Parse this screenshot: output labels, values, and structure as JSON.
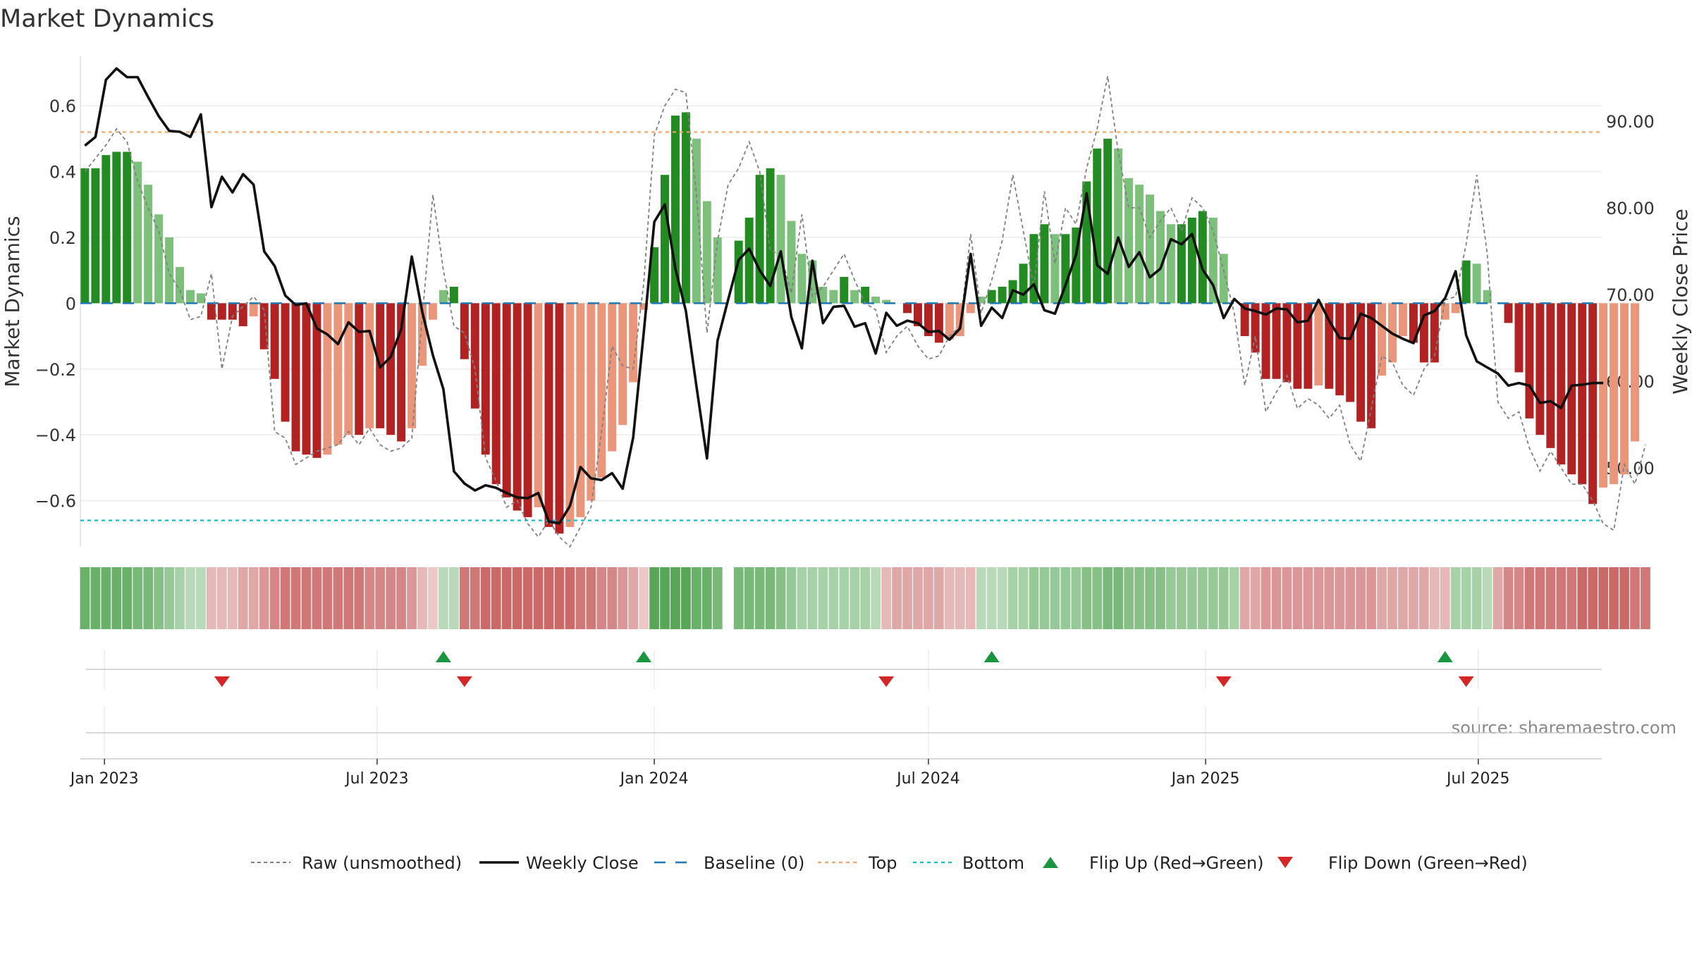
{
  "title": "Market Dynamics",
  "source_text": "source: sharemaestro.com",
  "colors": {
    "strong_green": "#228b22",
    "light_green": "#7cc07c",
    "strong_red": "#b22222",
    "light_red": "#e9967a",
    "close_line": "#111111",
    "raw_line": "#808080",
    "baseline": "#1f77b4",
    "top": "#f4a460",
    "bottom": "#17becf",
    "flip_up": "#1a9641",
    "flip_down": "#d62728"
  },
  "legend": [
    {
      "label": "Raw (unsmoothed)",
      "icon": "dashed-grey-line"
    },
    {
      "label": "Weekly Close",
      "icon": "solid-black-line"
    },
    {
      "label": "Baseline (0)",
      "icon": "dashed-blue-line"
    },
    {
      "label": "Top",
      "icon": "dotted-orange-line"
    },
    {
      "label": "Bottom",
      "icon": "dotted-cyan-line"
    },
    {
      "label": "Flip Up (Red→Green)",
      "icon": "green-up-triangle"
    },
    {
      "label": "Flip Down (Green→Red)",
      "icon": "red-down-triangle"
    }
  ],
  "chart_data": {
    "type": "bar",
    "title": "Market Dynamics",
    "ylabel": "Market Dynamics",
    "y2label": "Weekly Close Price",
    "ylim": [
      -0.74,
      0.75
    ],
    "y2lim": [
      40.9,
      97.5
    ],
    "y_ticks": [
      0.6,
      0.4,
      0.2,
      0,
      -0.2,
      -0.4,
      -0.6
    ],
    "y_tick_labels": [
      "0.6",
      "0.4",
      "0.2",
      "0",
      "−0.2",
      "−0.4",
      "−0.6"
    ],
    "y2_ticks": [
      90,
      80,
      70,
      60,
      50
    ],
    "y2_tick_labels": [
      "90.00",
      "80.00",
      "70.00",
      "60.00",
      "50.00"
    ],
    "x_start": "2022-12-16",
    "x_end": "2025-09-21",
    "x_ticks": [
      "2023-01-01",
      "2023-07-01",
      "2024-01-01",
      "2024-07-01",
      "2025-01-01",
      "2025-07-01"
    ],
    "x_tick_labels": [
      "Jan 2023",
      "Jul 2023",
      "Jan 2024",
      "Jul 2024",
      "Jan 2025",
      "Jul 2025"
    ],
    "week_start": "2022-12-19",
    "top_threshold": 0.52,
    "bottom_threshold": -0.66,
    "baseline": 0,
    "grid": true,
    "legend_position": "bottom",
    "series": [
      {
        "name": "Market Dynamics",
        "values": [
          0.41,
          0.41,
          0.45,
          0.46,
          0.46,
          0.43,
          0.36,
          0.27,
          0.2,
          0.11,
          0.04,
          0.03,
          -0.05,
          -0.05,
          -0.05,
          -0.07,
          -0.04,
          -0.14,
          -0.23,
          -0.36,
          -0.45,
          -0.46,
          -0.47,
          -0.46,
          -0.43,
          -0.4,
          -0.4,
          -0.38,
          -0.38,
          -0.4,
          -0.42,
          -0.38,
          -0.19,
          -0.05,
          0.04,
          0.05,
          -0.17,
          -0.32,
          -0.46,
          -0.55,
          -0.59,
          -0.63,
          -0.65,
          -0.62,
          -0.68,
          -0.7,
          -0.68,
          -0.65,
          -0.6,
          -0.53,
          -0.45,
          -0.37,
          -0.24,
          -0.02,
          0.17,
          0.39,
          0.57,
          0.58,
          0.5,
          0.31,
          0.2,
          0.0,
          0.19,
          0.26,
          0.39,
          0.41,
          0.39,
          0.25,
          0.15,
          0.13,
          0.05,
          0.04,
          0.08,
          0.04,
          0.05,
          0.02,
          0.01,
          0.0,
          -0.03,
          -0.07,
          -0.1,
          -0.12,
          -0.11,
          -0.1,
          -0.03,
          0.02,
          0.04,
          0.05,
          0.07,
          0.12,
          0.21,
          0.24,
          0.21,
          0.21,
          0.23,
          0.37,
          0.47,
          0.5,
          0.47,
          0.38,
          0.36,
          0.33,
          0.28,
          0.24,
          0.24,
          0.26,
          0.28,
          0.26,
          0.15,
          0.0,
          -0.1,
          -0.15,
          -0.23,
          -0.23,
          -0.24,
          -0.26,
          -0.26,
          -0.25,
          -0.26,
          -0.28,
          -0.3,
          -0.36,
          -0.38,
          -0.22,
          -0.18,
          -0.1,
          -0.12,
          -0.18,
          -0.18,
          -0.05,
          -0.03,
          0.13,
          0.12,
          0.04,
          0.0,
          -0.06,
          -0.21,
          -0.35,
          -0.4,
          -0.44,
          -0.49,
          -0.52,
          -0.55,
          -0.61,
          -0.56,
          -0.55,
          -0.52,
          -0.42
        ]
      },
      {
        "name": "Raw (unsmoothed)",
        "values": [
          0.4,
          0.44,
          0.48,
          0.53,
          0.49,
          0.37,
          0.29,
          0.22,
          0.09,
          0.04,
          -0.05,
          -0.04,
          0.09,
          -0.2,
          -0.04,
          -0.01,
          0.02,
          -0.02,
          -0.39,
          -0.41,
          -0.49,
          -0.47,
          -0.45,
          -0.44,
          -0.43,
          -0.39,
          -0.43,
          -0.38,
          -0.43,
          -0.45,
          -0.44,
          -0.41,
          -0.04,
          0.33,
          0.1,
          -0.07,
          -0.09,
          -0.2,
          -0.47,
          -0.54,
          -0.62,
          -0.6,
          -0.67,
          -0.71,
          -0.66,
          -0.71,
          -0.74,
          -0.68,
          -0.62,
          -0.39,
          -0.13,
          -0.19,
          -0.2,
          0.06,
          0.51,
          0.6,
          0.65,
          0.64,
          0.33,
          -0.09,
          0.19,
          0.36,
          0.41,
          0.49,
          0.4,
          0.16,
          0.15,
          0.03,
          0.27,
          0.02,
          0.05,
          0.1,
          0.15,
          0.07,
          0.0,
          -0.02,
          -0.15,
          -0.1,
          -0.07,
          -0.13,
          -0.17,
          -0.16,
          -0.1,
          -0.07,
          0.21,
          -0.03,
          0.07,
          0.19,
          0.39,
          0.22,
          0.05,
          0.34,
          0.12,
          0.29,
          0.24,
          0.41,
          0.53,
          0.69,
          0.46,
          0.29,
          0.29,
          0.2,
          0.25,
          0.29,
          0.22,
          0.32,
          0.29,
          0.22,
          0.1,
          -0.03,
          -0.25,
          -0.1,
          -0.33,
          -0.27,
          -0.22,
          -0.32,
          -0.29,
          -0.31,
          -0.35,
          -0.31,
          -0.43,
          -0.48,
          -0.32,
          -0.16,
          -0.18,
          -0.25,
          -0.28,
          -0.2,
          -0.16,
          0.01,
          0.02,
          0.18,
          0.39,
          0.15,
          -0.3,
          -0.35,
          -0.33,
          -0.44,
          -0.51,
          -0.45,
          -0.5,
          -0.55,
          -0.55,
          -0.6,
          -0.67,
          -0.69,
          -0.49,
          -0.55,
          -0.43
        ]
      },
      {
        "name": "Weekly Close",
        "values": [
          87.2,
          88.2,
          94.8,
          96.1,
          95.1,
          95.1,
          92.8,
          90.6,
          88.9,
          88.8,
          88.2,
          90.8,
          80.1,
          83.6,
          81.8,
          83.9,
          82.7,
          75.0,
          73.3,
          69.9,
          68.8,
          69.0,
          66.1,
          65.4,
          64.3,
          66.8,
          65.7,
          65.8,
          61.6,
          62.8,
          66.0,
          74.4,
          68.0,
          63.0,
          59.1,
          49.6,
          48.2,
          47.4,
          48.0,
          47.7,
          47.1,
          46.6,
          46.5,
          47.1,
          43.8,
          43.6,
          45.6,
          50.1,
          48.8,
          48.6,
          49.4,
          47.6,
          53.5,
          65.6,
          78.4,
          80.4,
          73.0,
          68.1,
          59.4,
          51.1,
          64.7,
          69.4,
          74.0,
          75.3,
          72.8,
          71.0,
          75.0,
          67.4,
          63.8,
          73.9,
          66.7,
          68.6,
          68.7,
          66.3,
          66.7,
          63.2,
          67.9,
          66.4,
          67.0,
          66.7,
          65.7,
          65.8,
          64.8,
          66.1,
          74.7,
          66.4,
          68.5,
          67.3,
          70.5,
          70.0,
          71.2,
          68.2,
          67.8,
          71.1,
          74.6,
          81.7,
          73.4,
          72.4,
          76.6,
          73.2,
          74.9,
          72.0,
          73.0,
          76.4,
          75.8,
          77.0,
          72.9,
          71.1,
          67.3,
          69.5,
          68.4,
          68.1,
          67.7,
          68.4,
          68.3,
          66.8,
          67.0,
          69.4,
          67.0,
          65.0,
          64.9,
          67.8,
          67.3,
          66.4,
          65.5,
          64.9,
          64.4,
          67.6,
          68.1,
          69.6,
          72.7,
          65.3,
          62.3,
          61.6,
          60.9,
          59.5,
          59.8,
          59.5,
          57.5,
          57.7,
          56.9,
          59.5,
          59.6,
          59.8,
          59.8
        ]
      }
    ],
    "regime_strip": [
      0.7,
      0.7,
      0.7,
      0.7,
      0.7,
      0.6,
      0.6,
      0.5,
      0.4,
      0.3,
      0.2,
      0.2,
      -0.2,
      -0.2,
      -0.2,
      -0.3,
      -0.3,
      -0.4,
      -0.5,
      -0.6,
      -0.6,
      -0.6,
      -0.6,
      -0.6,
      -0.6,
      -0.6,
      -0.6,
      -0.5,
      -0.5,
      -0.5,
      -0.5,
      -0.4,
      -0.2,
      -0.1,
      0.2,
      0.2,
      -0.6,
      -0.6,
      -0.7,
      -0.7,
      -0.7,
      -0.7,
      -0.7,
      -0.7,
      -0.7,
      -0.7,
      -0.7,
      -0.6,
      -0.6,
      -0.5,
      -0.5,
      -0.4,
      -0.3,
      -0.1,
      0.8,
      0.8,
      0.8,
      0.8,
      0.7,
      0.7,
      0.6,
      null,
      0.6,
      0.6,
      0.6,
      0.6,
      0.5,
      0.4,
      0.3,
      0.3,
      0.3,
      0.3,
      0.3,
      0.3,
      0.3,
      0.2,
      -0.2,
      -0.3,
      -0.3,
      -0.3,
      -0.3,
      -0.3,
      -0.2,
      -0.2,
      -0.2,
      0.2,
      0.2,
      0.2,
      0.3,
      0.3,
      0.4,
      0.4,
      0.4,
      0.4,
      0.4,
      0.5,
      0.5,
      0.6,
      0.6,
      0.5,
      0.5,
      0.5,
      0.5,
      0.4,
      0.4,
      0.4,
      0.4,
      0.4,
      0.4,
      0.3,
      -0.3,
      -0.3,
      -0.4,
      -0.4,
      -0.4,
      -0.4,
      -0.4,
      -0.4,
      -0.4,
      -0.4,
      -0.4,
      -0.4,
      -0.4,
      -0.3,
      -0.3,
      -0.3,
      -0.3,
      -0.3,
      -0.2,
      -0.2,
      0.3,
      0.3,
      0.3,
      0.2,
      -0.3,
      -0.5,
      -0.5,
      -0.6,
      -0.6,
      -0.6,
      -0.6,
      -0.6,
      -0.7,
      -0.7,
      -0.7,
      -0.7,
      -0.7,
      -0.6,
      -0.6
    ],
    "flip_up_dates": [
      "2023-08-14",
      "2023-12-25",
      "2024-08-12",
      "2025-06-09"
    ],
    "flip_down_dates": [
      "2023-03-20",
      "2023-08-28",
      "2024-06-03",
      "2025-01-13",
      "2025-06-23"
    ]
  }
}
